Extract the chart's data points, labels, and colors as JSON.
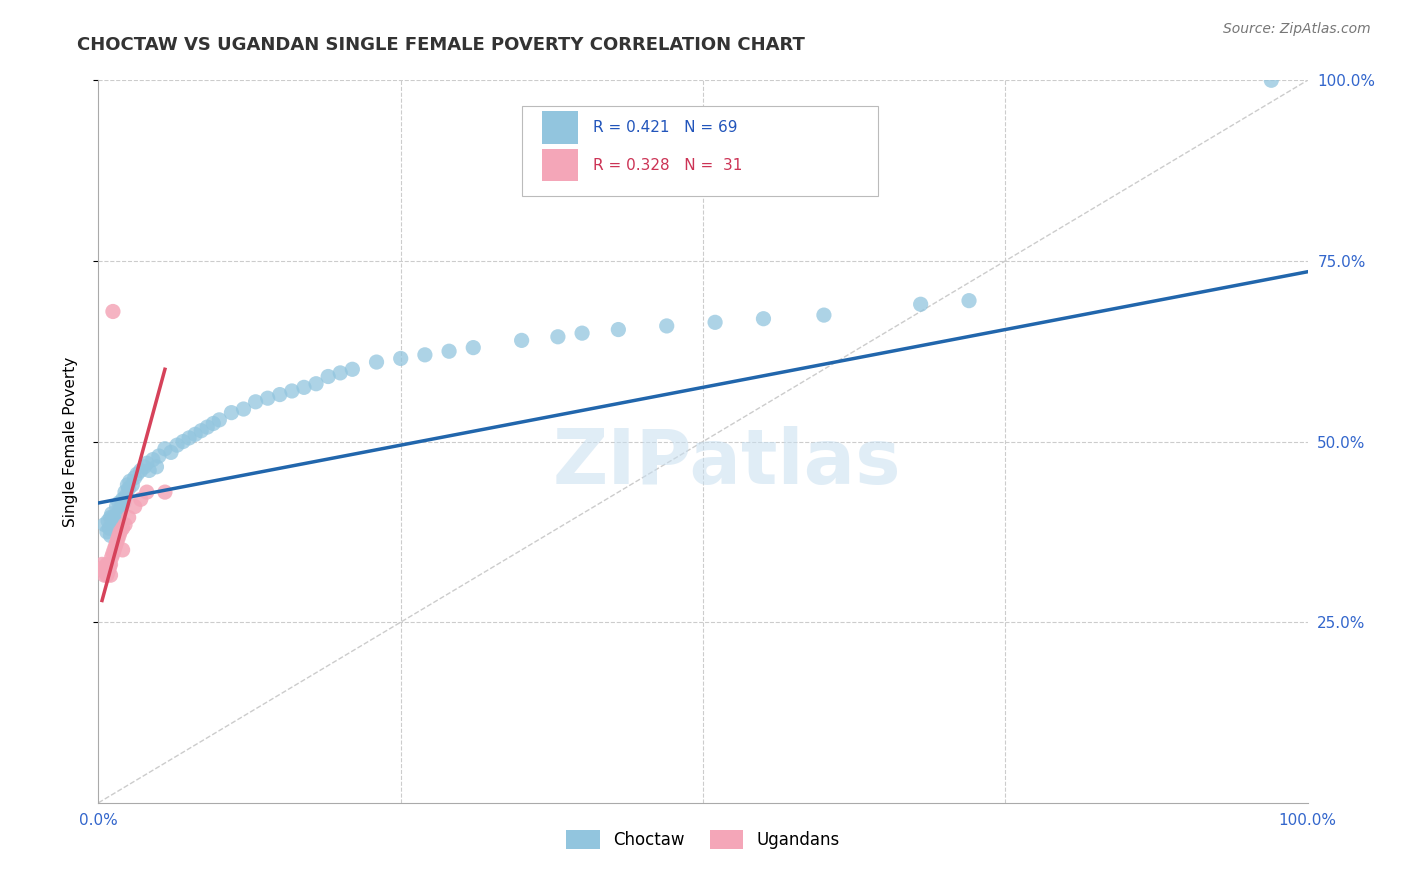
{
  "title": "CHOCTAW VS UGANDAN SINGLE FEMALE POVERTY CORRELATION CHART",
  "source": "Source: ZipAtlas.com",
  "ylabel": "Single Female Poverty",
  "xlim": [
    0,
    1
  ],
  "ylim": [
    0,
    1
  ],
  "blue_color": "#92c5de",
  "pink_color": "#f4a6b8",
  "blue_line_color": "#2166ac",
  "pink_line_color": "#d6425a",
  "grid_color": "#cccccc",
  "watermark": "ZIPatlas",
  "legend_blue": "R = 0.421   N = 69",
  "legend_pink": "R = 0.328   N =  31",
  "choctaw_x": [
    0.005,
    0.007,
    0.008,
    0.009,
    0.01,
    0.01,
    0.011,
    0.012,
    0.013,
    0.014,
    0.015,
    0.016,
    0.017,
    0.018,
    0.019,
    0.02,
    0.021,
    0.022,
    0.023,
    0.024,
    0.025,
    0.026,
    0.028,
    0.03,
    0.032,
    0.035,
    0.038,
    0.04,
    0.042,
    0.045,
    0.048,
    0.05,
    0.055,
    0.06,
    0.065,
    0.07,
    0.075,
    0.08,
    0.085,
    0.09,
    0.095,
    0.1,
    0.11,
    0.12,
    0.13,
    0.14,
    0.15,
    0.16,
    0.17,
    0.18,
    0.19,
    0.2,
    0.21,
    0.23,
    0.25,
    0.27,
    0.29,
    0.31,
    0.35,
    0.38,
    0.4,
    0.43,
    0.47,
    0.51,
    0.55,
    0.6,
    0.68,
    0.72,
    0.97
  ],
  "choctaw_y": [
    0.385,
    0.375,
    0.39,
    0.38,
    0.395,
    0.37,
    0.4,
    0.395,
    0.385,
    0.39,
    0.41,
    0.4,
    0.415,
    0.405,
    0.41,
    0.42,
    0.415,
    0.43,
    0.425,
    0.44,
    0.435,
    0.445,
    0.44,
    0.45,
    0.455,
    0.46,
    0.465,
    0.47,
    0.46,
    0.475,
    0.465,
    0.48,
    0.49,
    0.485,
    0.495,
    0.5,
    0.505,
    0.51,
    0.515,
    0.52,
    0.525,
    0.53,
    0.54,
    0.545,
    0.555,
    0.56,
    0.565,
    0.57,
    0.575,
    0.58,
    0.59,
    0.595,
    0.6,
    0.61,
    0.615,
    0.62,
    0.625,
    0.63,
    0.64,
    0.645,
    0.65,
    0.655,
    0.66,
    0.665,
    0.67,
    0.675,
    0.69,
    0.695,
    1.0
  ],
  "ugandan_x": [
    0.003,
    0.004,
    0.005,
    0.005,
    0.006,
    0.006,
    0.007,
    0.007,
    0.008,
    0.008,
    0.009,
    0.009,
    0.01,
    0.01,
    0.011,
    0.012,
    0.013,
    0.014,
    0.015,
    0.016,
    0.017,
    0.018,
    0.02,
    0.022,
    0.025,
    0.03,
    0.035,
    0.04,
    0.055,
    0.02,
    0.012
  ],
  "ugandan_y": [
    0.33,
    0.325,
    0.32,
    0.315,
    0.325,
    0.32,
    0.33,
    0.315,
    0.325,
    0.32,
    0.33,
    0.325,
    0.33,
    0.315,
    0.34,
    0.345,
    0.35,
    0.355,
    0.36,
    0.365,
    0.37,
    0.375,
    0.38,
    0.385,
    0.395,
    0.41,
    0.42,
    0.43,
    0.43,
    0.35,
    0.68
  ],
  "blue_trend_x0": 0.0,
  "blue_trend_y0": 0.415,
  "blue_trend_x1": 1.0,
  "blue_trend_y1": 0.735,
  "pink_trend_x0": 0.003,
  "pink_trend_y0": 0.28,
  "pink_trend_x1": 0.055,
  "pink_trend_y1": 0.6
}
